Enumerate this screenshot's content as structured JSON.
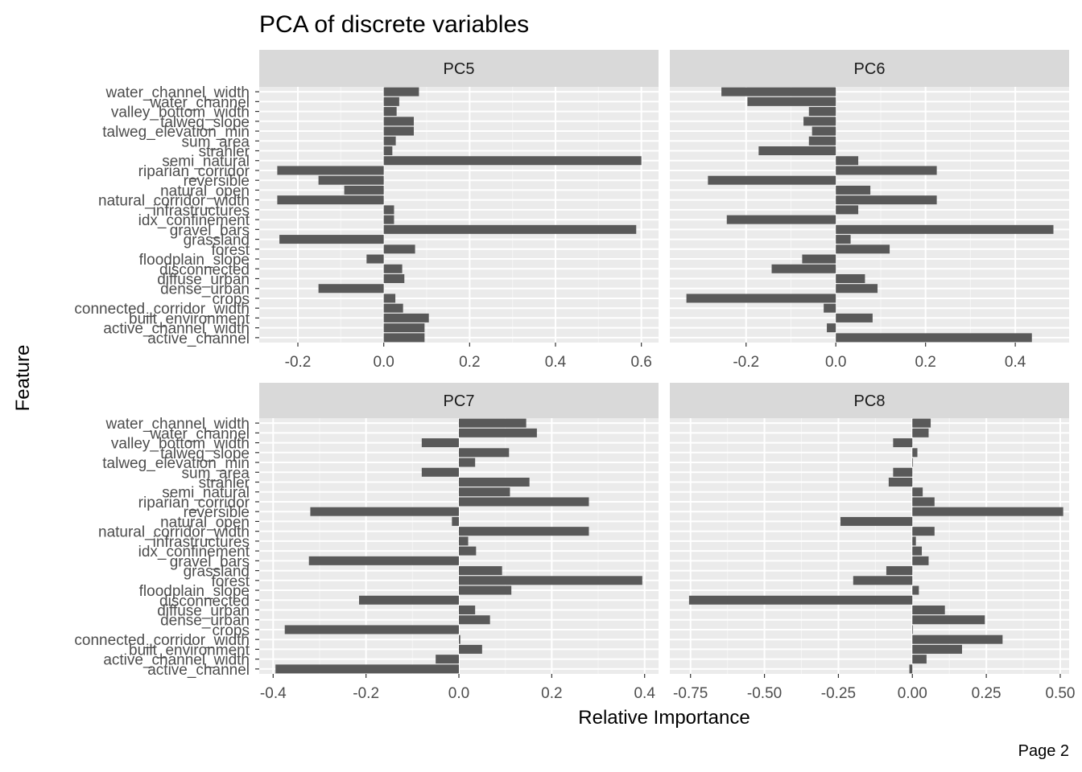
{
  "page_label": "Page 2",
  "chart_data": {
    "type": "bar",
    "orientation": "horizontal",
    "title": "PCA of discrete variables",
    "xlabel": "Relative Importance",
    "ylabel": "Feature",
    "grid": true,
    "bar_color": "#595959",
    "panel_background": "#ebebeb",
    "strip_background": "#d9d9d9",
    "categories": [
      "water_channel_width",
      "water_channel",
      "valley_bottom_width",
      "talweg_slope",
      "talweg_elevation_min",
      "sum_area",
      "strahler",
      "semi_natural",
      "riparian_corridor",
      "reversible",
      "natural_open",
      "natural_corridor_width",
      "infrastructures",
      "idx_confinement",
      "gravel_bars",
      "grassland",
      "forest",
      "floodplain_slope",
      "disconnected",
      "diffuse_urban",
      "dense_urban",
      "crops",
      "connected_corridor_width",
      "built_environment",
      "active_channel_width",
      "active_channel"
    ],
    "panels": [
      {
        "name": "PC5",
        "xlim": [
          -0.29,
          0.64
        ],
        "ticks": [
          -0.2,
          0.0,
          0.2,
          0.4,
          0.6
        ],
        "tick_labels": [
          "-0.2",
          "0.0",
          "0.2",
          "0.4",
          "0.6"
        ],
        "values": [
          0.082,
          0.036,
          0.03,
          0.07,
          0.07,
          0.028,
          0.02,
          0.6,
          -0.248,
          -0.152,
          -0.092,
          -0.248,
          0.024,
          0.024,
          0.588,
          -0.243,
          0.073,
          -0.04,
          0.043,
          0.048,
          -0.152,
          0.027,
          0.045,
          0.105,
          0.095,
          0.095
        ]
      },
      {
        "name": "PC6",
        "xlim": [
          -0.37,
          0.52
        ],
        "ticks": [
          -0.2,
          0.0,
          0.2,
          0.4
        ],
        "tick_labels": [
          "-0.2",
          "0.0",
          "0.2",
          "0.4"
        ],
        "values": [
          -0.255,
          -0.197,
          -0.06,
          -0.072,
          -0.053,
          -0.06,
          -0.172,
          0.05,
          0.225,
          -0.285,
          0.077,
          0.225,
          0.05,
          -0.243,
          0.485,
          0.033,
          0.12,
          -0.075,
          -0.143,
          0.065,
          0.093,
          -0.333,
          -0.027,
          0.082,
          -0.02,
          0.437
        ]
      },
      {
        "name": "PC7",
        "xlim": [
          -0.43,
          0.43
        ],
        "ticks": [
          -0.4,
          -0.2,
          0.0,
          0.2,
          0.4
        ],
        "tick_labels": [
          "-0.4",
          "-0.2",
          "0.0",
          "0.2",
          "0.4"
        ],
        "values": [
          0.145,
          0.168,
          -0.08,
          0.108,
          0.035,
          -0.08,
          0.152,
          0.11,
          0.28,
          -0.32,
          -0.015,
          0.28,
          0.02,
          0.037,
          -0.323,
          0.093,
          0.395,
          0.113,
          -0.215,
          0.035,
          0.067,
          -0.375,
          0.003,
          0.05,
          -0.05,
          -0.395
        ]
      },
      {
        "name": "PC8",
        "xlim": [
          -0.82,
          0.53
        ],
        "ticks": [
          -0.75,
          -0.5,
          -0.25,
          0.0,
          0.25,
          0.5
        ],
        "tick_labels": [
          "-0.75",
          "-0.50",
          "-0.25",
          "0.00",
          "0.25",
          "0.50"
        ],
        "values": [
          0.062,
          0.055,
          -0.065,
          0.017,
          0.0,
          -0.065,
          -0.08,
          0.035,
          0.075,
          0.51,
          -0.243,
          0.075,
          0.012,
          0.032,
          0.055,
          -0.088,
          -0.2,
          0.022,
          -0.755,
          0.11,
          0.245,
          0.0,
          0.305,
          0.168,
          0.048,
          -0.01
        ]
      }
    ]
  }
}
